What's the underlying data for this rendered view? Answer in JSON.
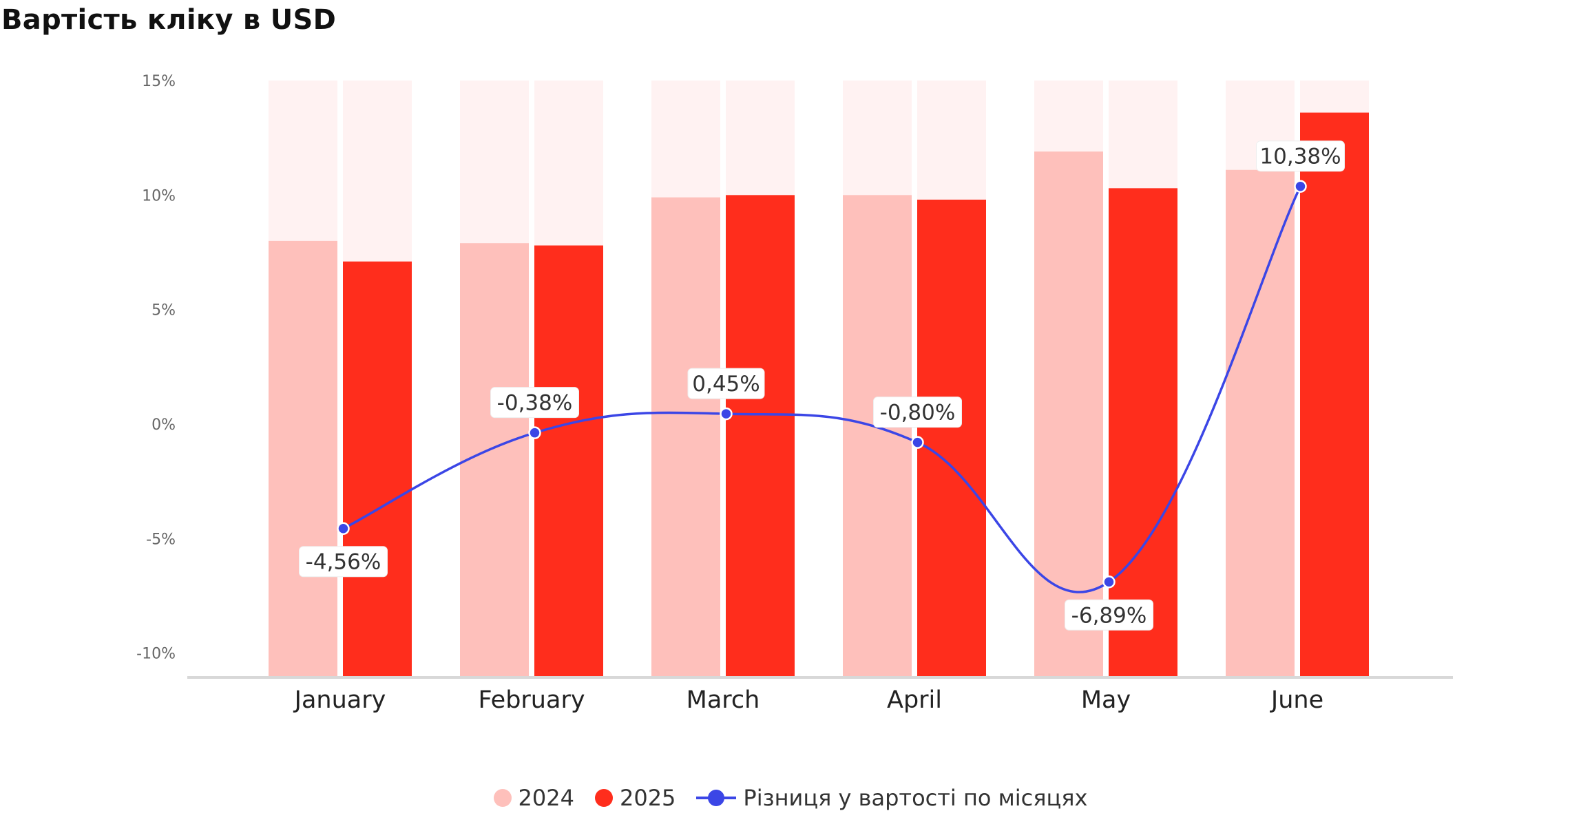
{
  "title": "Вартість кліку в USD",
  "colors": {
    "bar_2024": "#fec0bb",
    "bar_2025": "#ff2d1c",
    "bar_background": "#fff2f2",
    "line": "#3b46e6",
    "axis": "#d8d8d8",
    "tick_text": "#666666"
  },
  "chart_data": {
    "type": "bar",
    "categories": [
      "January",
      "February",
      "March",
      "April",
      "May",
      "June"
    ],
    "ylim": [
      -11,
      15
    ],
    "y_ticks": [
      "15%",
      "10%",
      "5%",
      "0%",
      "-5%",
      "-10%"
    ],
    "y_tick_values": [
      15,
      10,
      5,
      0,
      -5,
      -10
    ],
    "series": [
      {
        "name": "2024",
        "values": [
          8.0,
          7.9,
          9.9,
          10.0,
          11.9,
          11.1
        ]
      },
      {
        "name": "2025",
        "values": [
          7.1,
          7.8,
          10.0,
          9.8,
          10.3,
          13.6
        ]
      },
      {
        "name": "Різниця у вартості по місяцях",
        "type": "line",
        "values": [
          -4.56,
          -0.38,
          0.45,
          -0.8,
          -6.89,
          10.38
        ],
        "labels": [
          "-4,56%",
          "-0,38%",
          "0,45%",
          "-0,80%",
          "-6,89%",
          "10,38%"
        ],
        "label_positions": [
          "below",
          "above",
          "above",
          "above",
          "below",
          "above"
        ]
      }
    ],
    "legend": [
      "2024",
      "2025",
      "Різниця у вартості по місяцях"
    ],
    "legend_position": "bottom",
    "grid": false
  }
}
